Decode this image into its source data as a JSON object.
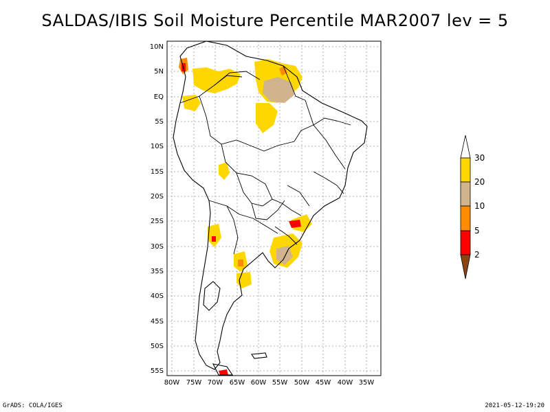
{
  "title": "SALDAS/IBIS Soil Moisture Percentile MAR2007 lev = 5",
  "map": {
    "lat_labels": [
      "10N",
      "5N",
      "EQ",
      "5S",
      "10S",
      "15S",
      "20S",
      "25S",
      "30S",
      "35S",
      "40S",
      "45S",
      "50S",
      "55S"
    ],
    "lon_labels": [
      "80W",
      "75W",
      "70W",
      "65W",
      "60W",
      "55W",
      "50W",
      "45W",
      "40W",
      "35W"
    ]
  },
  "colorbar": {
    "levels": [
      "2",
      "5",
      "10",
      "20",
      "30"
    ],
    "colors": {
      "below_2": "#8b4513",
      "c2_5": "#ff0000",
      "c5_10": "#ff8c00",
      "c10_20": "#d2b48c",
      "c20_30": "#ffd700",
      "above_30": "#ffffff"
    }
  },
  "footer": {
    "left": "GrADS: COLA/IGES",
    "right": "2021-05-12-19:20"
  }
}
